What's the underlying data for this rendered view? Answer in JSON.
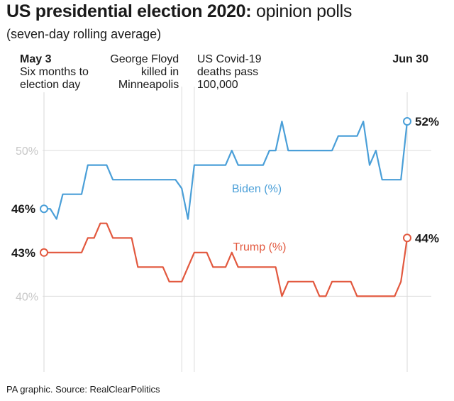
{
  "header": {
    "title_bold": "US presidential election 2020:",
    "title_light": "opinion polls",
    "subtitle": "(seven-day rolling average)"
  },
  "footer": {
    "source": "PA graphic. Source: RealClearPolitics"
  },
  "chart_data": {
    "type": "line",
    "title": "US presidential election 2020: opinion polls",
    "subtitle": "(seven-day rolling average)",
    "x_range": [
      "May 3",
      "Jun 30"
    ],
    "x_days_range": [
      0,
      58
    ],
    "ylim": [
      35,
      54
    ],
    "y_ticks": [
      {
        "value": 40,
        "label": "40%"
      },
      {
        "value": 50,
        "label": "50%"
      }
    ],
    "annotations": [
      {
        "day": 0,
        "lines": [
          "May 3",
          "Six months to",
          "election day"
        ],
        "bold_first": true,
        "align": "left"
      },
      {
        "day": 22,
        "lines": [
          "George Floyd",
          "killed in",
          "Minneapolis"
        ],
        "bold_first": false,
        "align": "right"
      },
      {
        "day": 24,
        "lines": [
          "US Covid-19",
          "deaths pass",
          "100,000"
        ],
        "bold_first": false,
        "align": "left"
      },
      {
        "day": 58,
        "lines": [
          "Jun 30"
        ],
        "bold_first": true,
        "align": "right"
      }
    ],
    "series": [
      {
        "name": "Biden (%)",
        "color": "#4a9fd8",
        "start_label": "46%",
        "end_label": "52%",
        "points": [
          [
            0,
            46
          ],
          [
            1,
            46
          ],
          [
            2,
            45.3
          ],
          [
            3,
            47
          ],
          [
            4,
            47
          ],
          [
            5,
            47
          ],
          [
            6,
            47
          ],
          [
            7,
            49
          ],
          [
            8,
            49
          ],
          [
            9,
            49
          ],
          [
            10,
            49
          ],
          [
            11,
            48
          ],
          [
            12,
            48
          ],
          [
            13,
            48
          ],
          [
            14,
            48
          ],
          [
            15,
            48
          ],
          [
            16,
            48
          ],
          [
            17,
            48
          ],
          [
            18,
            48
          ],
          [
            19,
            48
          ],
          [
            20,
            48
          ],
          [
            21,
            48
          ],
          [
            22,
            47.4
          ],
          [
            23,
            45.3
          ],
          [
            24,
            49
          ],
          [
            25,
            49
          ],
          [
            26,
            49
          ],
          [
            27,
            49
          ],
          [
            28,
            49
          ],
          [
            29,
            49
          ],
          [
            30,
            50
          ],
          [
            31,
            49
          ],
          [
            32,
            49
          ],
          [
            33,
            49
          ],
          [
            34,
            49
          ],
          [
            35,
            49
          ],
          [
            36,
            50
          ],
          [
            37,
            50
          ],
          [
            38,
            52
          ],
          [
            39,
            50
          ],
          [
            40,
            50
          ],
          [
            41,
            50
          ],
          [
            42,
            50
          ],
          [
            43,
            50
          ],
          [
            44,
            50
          ],
          [
            45,
            50
          ],
          [
            46,
            50
          ],
          [
            47,
            51
          ],
          [
            48,
            51
          ],
          [
            49,
            51
          ],
          [
            50,
            51
          ],
          [
            51,
            52
          ],
          [
            52,
            49
          ],
          [
            53,
            50
          ],
          [
            54,
            48
          ],
          [
            55,
            48
          ],
          [
            56,
            48
          ],
          [
            57,
            48
          ],
          [
            58,
            52
          ]
        ]
      },
      {
        "name": "Trump (%)",
        "color": "#e2583e",
        "start_label": "43%",
        "end_label": "44%",
        "points": [
          [
            0,
            43
          ],
          [
            1,
            43
          ],
          [
            2,
            43
          ],
          [
            3,
            43
          ],
          [
            4,
            43
          ],
          [
            5,
            43
          ],
          [
            6,
            43
          ],
          [
            7,
            44
          ],
          [
            8,
            44
          ],
          [
            9,
            45
          ],
          [
            10,
            45
          ],
          [
            11,
            44
          ],
          [
            12,
            44
          ],
          [
            13,
            44
          ],
          [
            14,
            44
          ],
          [
            15,
            42
          ],
          [
            16,
            42
          ],
          [
            17,
            42
          ],
          [
            18,
            42
          ],
          [
            19,
            42
          ],
          [
            20,
            41
          ],
          [
            21,
            41
          ],
          [
            22,
            41
          ],
          [
            23,
            42
          ],
          [
            24,
            43
          ],
          [
            25,
            43
          ],
          [
            26,
            43
          ],
          [
            27,
            42
          ],
          [
            28,
            42
          ],
          [
            29,
            42
          ],
          [
            30,
            43
          ],
          [
            31,
            42
          ],
          [
            32,
            42
          ],
          [
            33,
            42
          ],
          [
            34,
            42
          ],
          [
            35,
            42
          ],
          [
            36,
            42
          ],
          [
            37,
            42
          ],
          [
            38,
            40
          ],
          [
            39,
            41
          ],
          [
            40,
            41
          ],
          [
            41,
            41
          ],
          [
            42,
            41
          ],
          [
            43,
            41
          ],
          [
            44,
            40
          ],
          [
            45,
            40
          ],
          [
            46,
            41
          ],
          [
            47,
            41
          ],
          [
            48,
            41
          ],
          [
            49,
            41
          ],
          [
            50,
            40
          ],
          [
            51,
            40
          ],
          [
            52,
            40
          ],
          [
            53,
            40
          ],
          [
            54,
            40
          ],
          [
            55,
            40
          ],
          [
            56,
            40
          ],
          [
            57,
            41
          ],
          [
            58,
            44
          ]
        ]
      }
    ]
  }
}
